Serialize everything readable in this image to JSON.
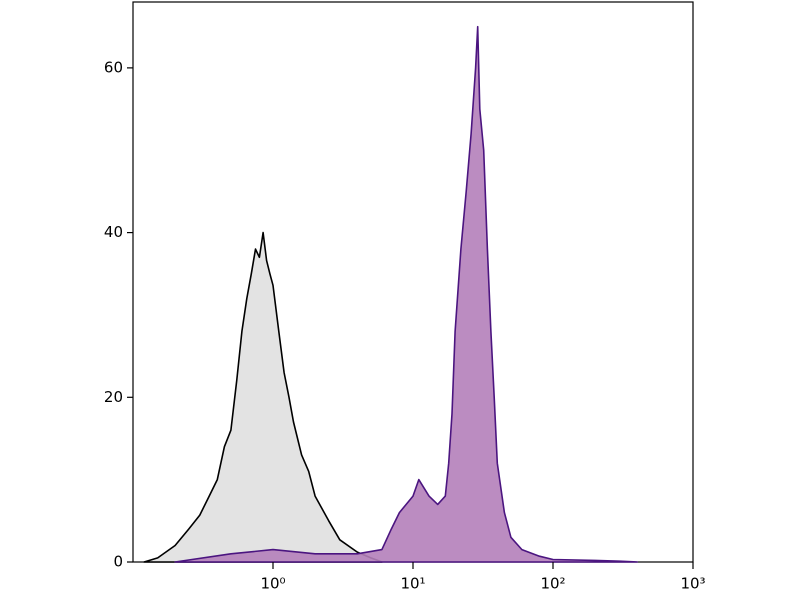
{
  "chart_data": {
    "type": "histogram-overlay",
    "xscale": "log",
    "xlim": [
      0.1,
      1000
    ],
    "ylim": [
      0,
      68
    ],
    "xticks": [
      {
        "value": 1,
        "label": "10⁰"
      },
      {
        "value": 10,
        "label": "10¹"
      },
      {
        "value": 100,
        "label": "10²"
      },
      {
        "value": 1000,
        "label": "10³"
      }
    ],
    "yticks": [
      0,
      20,
      40,
      60
    ],
    "series": [
      {
        "color": "#000000",
        "fill": "#e0e0e0",
        "x": [
          0.12,
          0.15,
          0.2,
          0.25,
          0.3,
          0.35,
          0.4,
          0.45,
          0.5,
          0.55,
          0.6,
          0.65,
          0.7,
          0.75,
          0.8,
          0.85,
          0.9,
          0.95,
          1.0,
          1.1,
          1.2,
          1.3,
          1.4,
          1.6,
          1.8,
          2.0,
          2.5,
          3,
          4,
          5,
          6
        ],
        "values": [
          0,
          0.5,
          2,
          4,
          5.7,
          8,
          10,
          14,
          16,
          22,
          28,
          32,
          35,
          38,
          37,
          40,
          36.6,
          35,
          33.6,
          28,
          23,
          20,
          17,
          13,
          11,
          8,
          5,
          2.7,
          1.2,
          0.5,
          0
        ]
      },
      {
        "color": "#4b1580",
        "fill": "#b47fba",
        "x": [
          0.2,
          0.5,
          1,
          2,
          4,
          6,
          7,
          8,
          10,
          11,
          13,
          15,
          17,
          18,
          19,
          20,
          22,
          24,
          26,
          28,
          29,
          30,
          32,
          34,
          36,
          38,
          40,
          45,
          50,
          60,
          80,
          100,
          200,
          300,
          400
        ],
        "values": [
          0,
          1,
          1.5,
          1,
          1,
          1.5,
          4,
          6,
          8,
          10,
          8,
          7,
          8,
          12,
          18,
          28,
          38,
          45,
          52,
          60,
          65,
          55,
          50,
          38,
          28,
          20,
          12,
          6,
          3,
          1.5,
          0.7,
          0.3,
          0.2,
          0.1,
          0
        ]
      }
    ]
  }
}
